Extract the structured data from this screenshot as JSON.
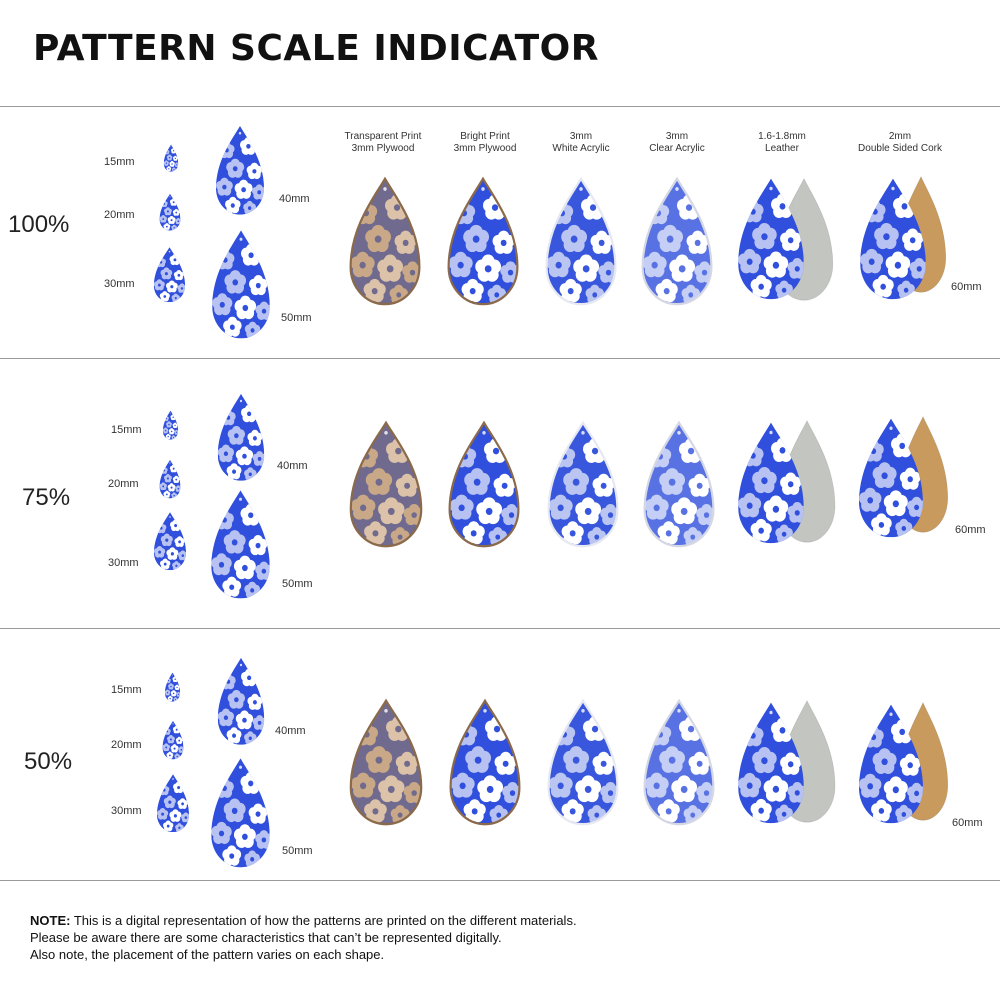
{
  "title": "PATTERN SCALE INDICATOR",
  "materials": [
    {
      "line1": "Transparent Print",
      "line2": "3mm Plywood"
    },
    {
      "line1": "Bright Print",
      "line2": "3mm Plywood"
    },
    {
      "line1": "3mm",
      "line2": "White Acrylic"
    },
    {
      "line1": "3mm",
      "line2": "Clear Acrylic"
    },
    {
      "line1": "1.6-1.8mm",
      "line2": "Leather"
    },
    {
      "line1": "2mm",
      "line2": "Double Sided Cork"
    }
  ],
  "sections": [
    {
      "scale": "100%"
    },
    {
      "scale": "75%"
    },
    {
      "scale": "50%"
    }
  ],
  "sizes": {
    "s15": "15mm",
    "s20": "20mm",
    "s30": "30mm",
    "s40": "40mm",
    "s50": "50mm",
    "s60": "60mm"
  },
  "colors": {
    "pattern_blue": "#2f4fdc",
    "petal_light": "#b7c2f2",
    "petal_white": "#ffffff",
    "plywood_tint": "#6f6a8e",
    "plywood_petal": "#c9a888",
    "leather_back": "#c3c6c0",
    "cork_back": "#c89a5e",
    "edge_wood": "#8a6a4a"
  },
  "note": {
    "bold": "NOTE:",
    "line1": "This is a digital representation of how the patterns are printed on the different materials.",
    "line2": "Please be aware there are some characteristics that can’t be represented digitally.",
    "line3": "Also note, the placement of the pattern varies on each shape."
  }
}
